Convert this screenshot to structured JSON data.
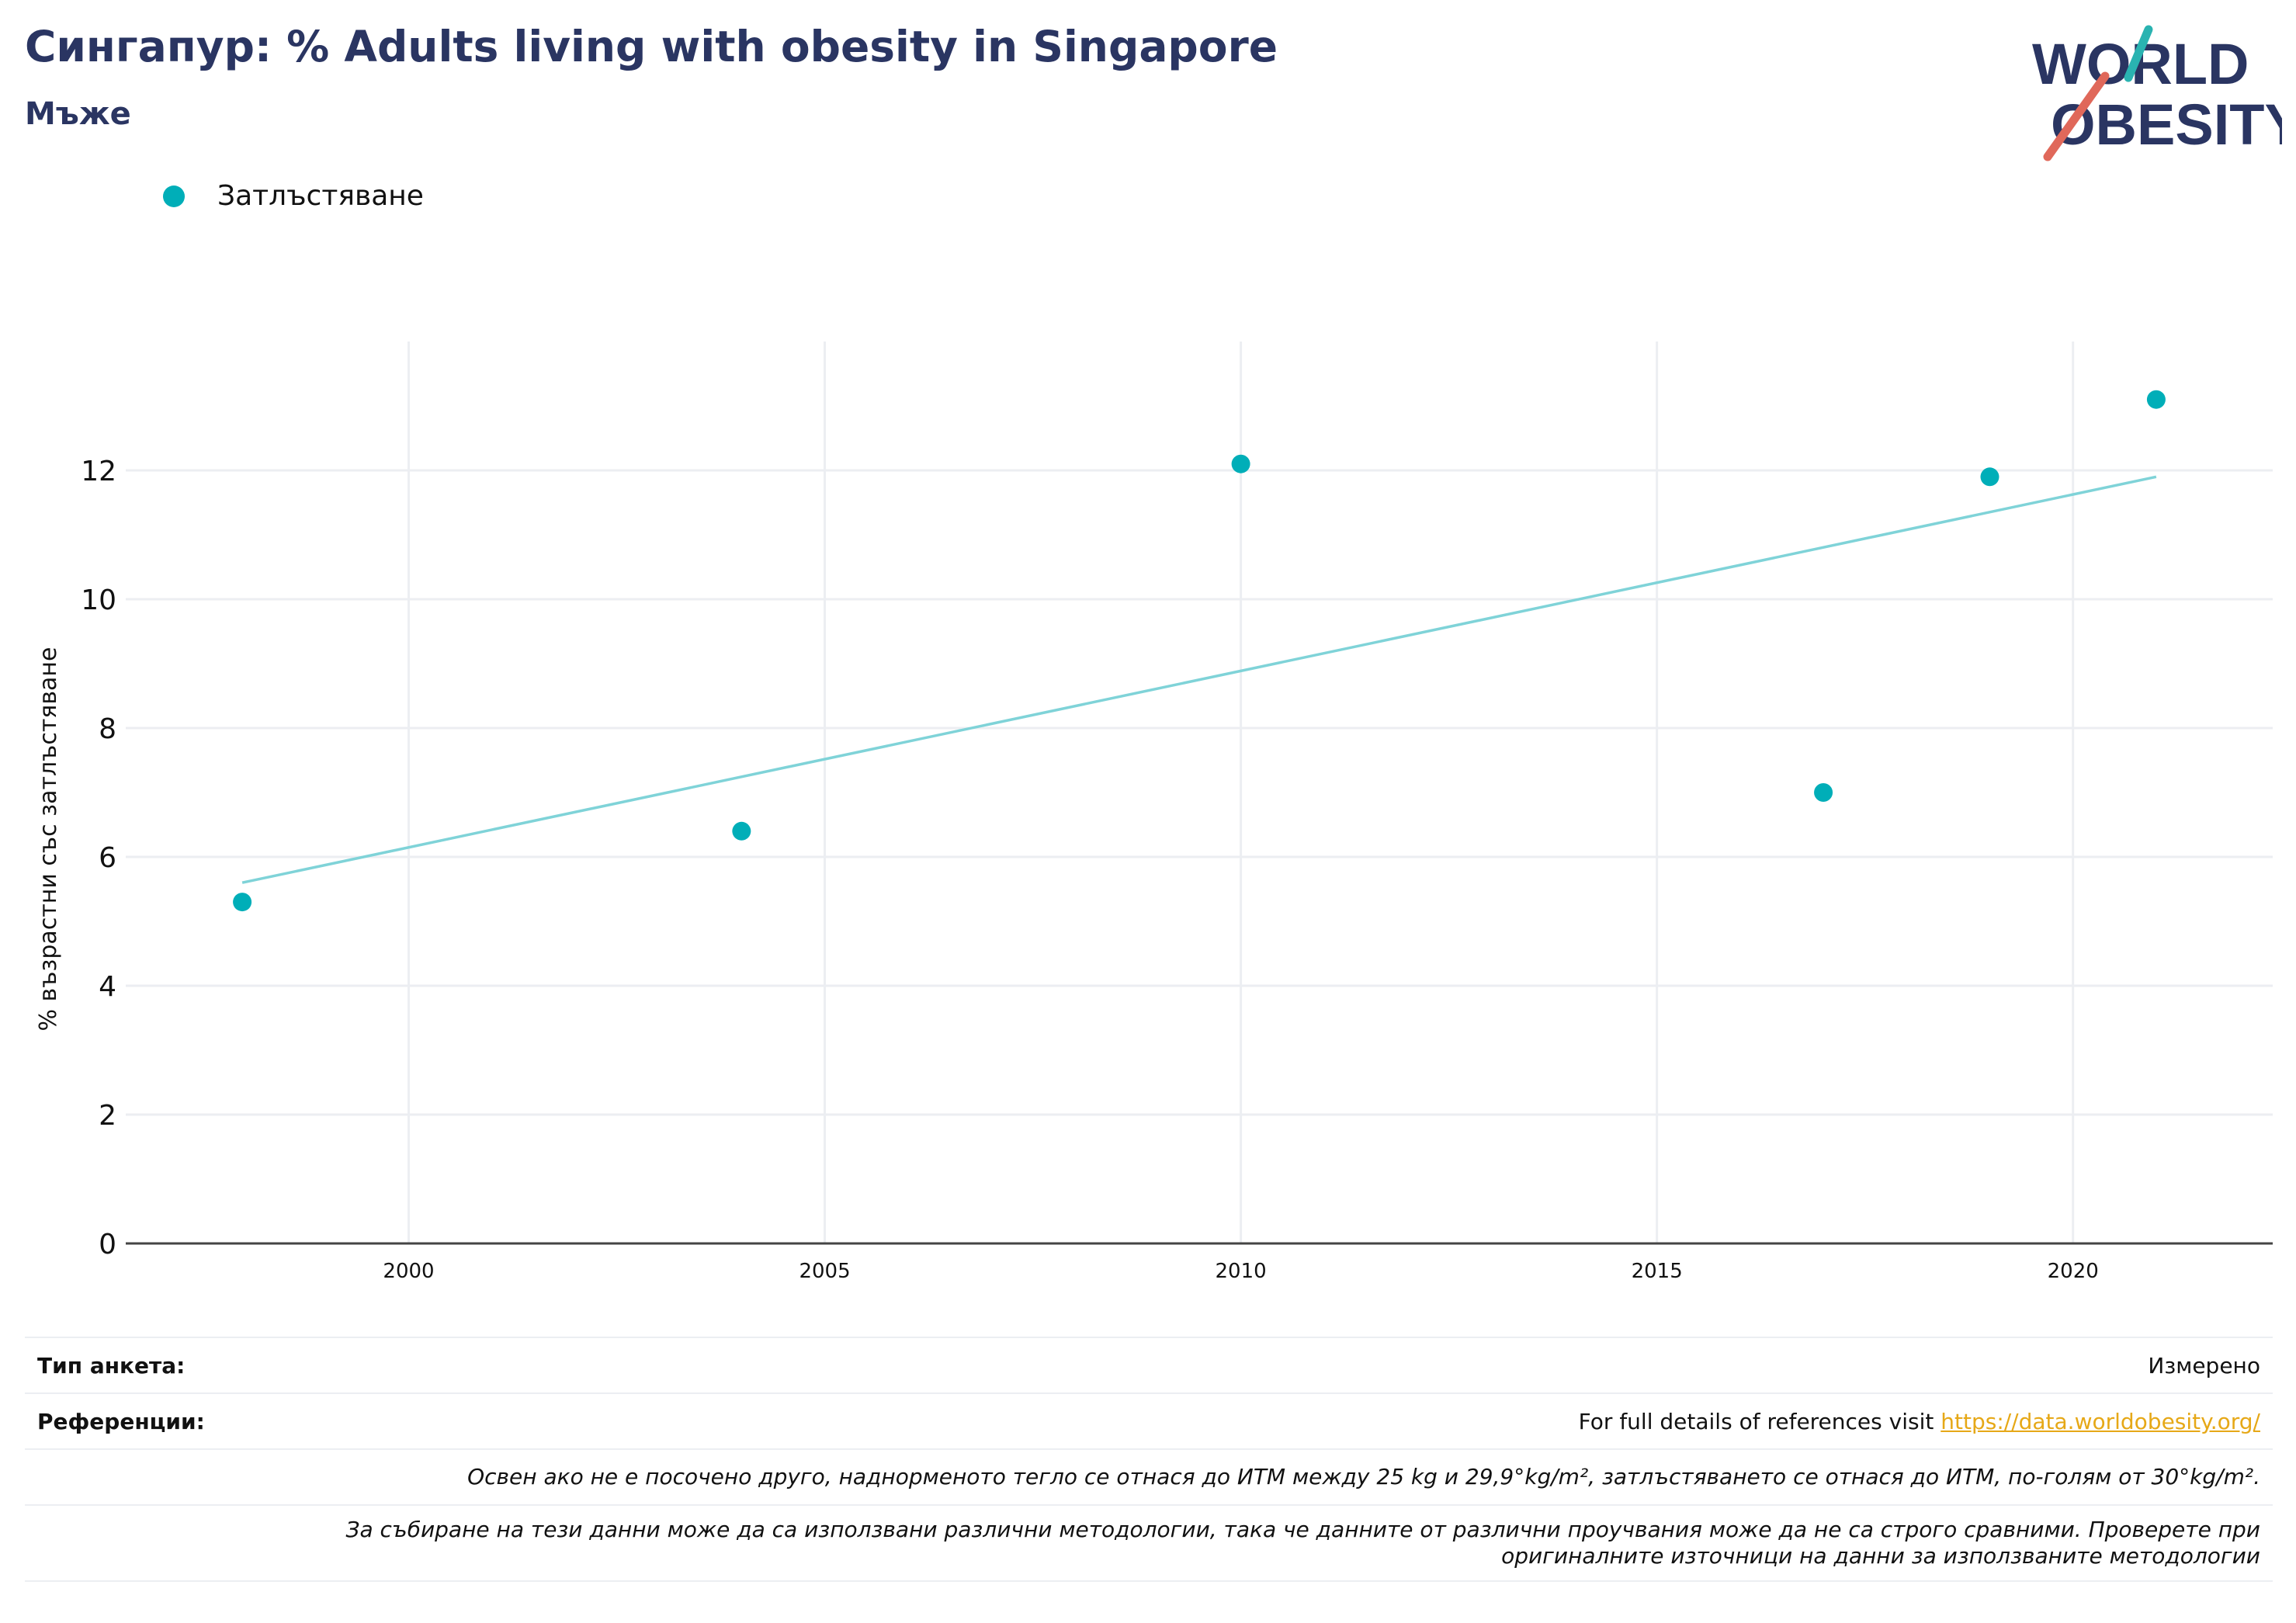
{
  "header": {
    "title": "Сингапур: % Adults living with obesity in Singapore",
    "subtitle": "Мъже",
    "logo_line1": "WORLD",
    "logo_line2": "OBESITY"
  },
  "colors": {
    "title": "#2a3562",
    "series": "#00aeb8",
    "trendline": "#7fd3d8",
    "logo_slash_teal": "#2ab3b1",
    "logo_slash_red": "#e0685a",
    "link": "#e6a817"
  },
  "chart_data": {
    "type": "scatter",
    "title": "",
    "xlabel": "",
    "ylabel": "% възрастни със затлъстяване",
    "xlim": [
      1996.6,
      2022.4
    ],
    "ylim": [
      0,
      14
    ],
    "x_ticks": [
      2000,
      2005,
      2010,
      2015,
      2020
    ],
    "y_ticks": [
      0,
      2,
      4,
      6,
      8,
      10,
      12
    ],
    "grid": true,
    "legend_position": "top-left",
    "series": [
      {
        "name": "Затлъстяване",
        "points": [
          {
            "x": 1998,
            "y": 5.3
          },
          {
            "x": 2004,
            "y": 6.4
          },
          {
            "x": 2010,
            "y": 12.1
          },
          {
            "x": 2017,
            "y": 7.0
          },
          {
            "x": 2019,
            "y": 11.9
          },
          {
            "x": 2021,
            "y": 13.1
          }
        ]
      }
    ],
    "trendline": {
      "x": [
        1998,
        2021
      ],
      "y": [
        5.6,
        11.9
      ]
    }
  },
  "info": {
    "survey_type_label": "Тип анкета:",
    "survey_type_value": "Измерено",
    "references_label": "Референции:",
    "references_text": "For full details of references visit ",
    "references_link": "https://data.worldobesity.org/",
    "note1": "Освен ако не е посочено друго, наднорменото тегло се отнася до ИТМ между 25 kg и 29,9°kg/m², затлъстяването се отнася до ИТМ, по-голям от 30°kg/m².",
    "note2_line1": "За събиране на тези данни може да са използвани различни методологии, така че данните от различни проучвания може да не са строго сравними. Проверете при",
    "note2_line2": "оригиналните източници на данни за използваните методологии"
  }
}
